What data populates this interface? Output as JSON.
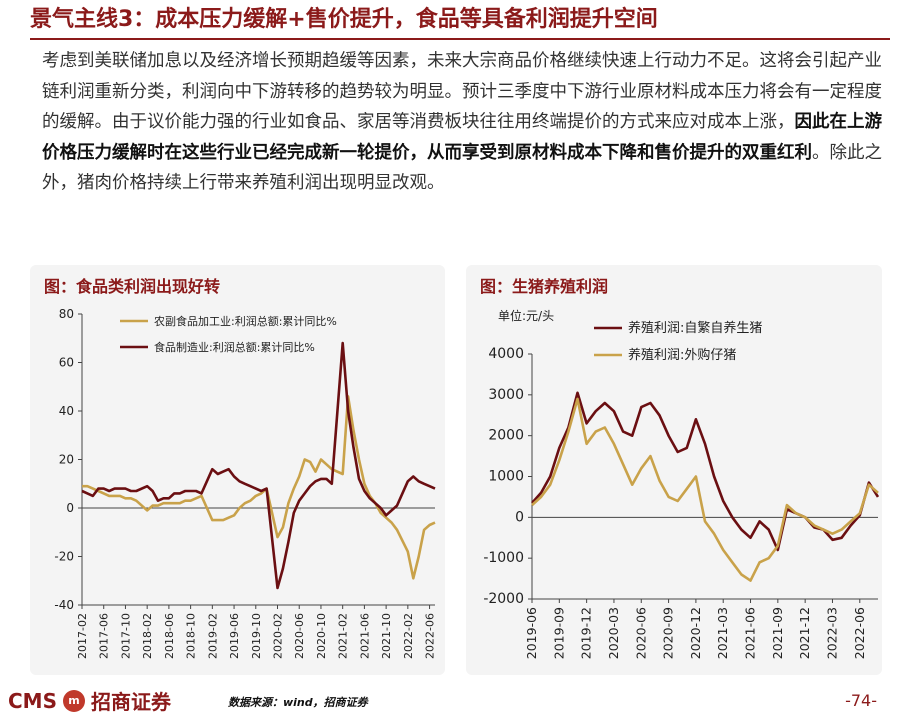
{
  "title": "景气主线3：成本压力缓解+售价提升，食品等具备利润提升空间",
  "body": {
    "p1": "考虑到美联储加息以及经济增长预期趋缓等因素，未来大宗商品价格继续快速上行动力不足。这将会引起产业链利润重新分类，利润向中下游转移的趋势较为明显。预计三季度中下游行业原材料成本压力将会有一定程度的缓解。由于议价能力强的行业如食品、家居等消费板块往往用终端提价的方式来应对成本上涨，",
    "bold": "因此在上游价格压力缓解时在这些行业已经完成新一轮提价，从而享受到原材料成本下降和售价提升的双重红利",
    "p2": "。除此之外，猪肉价格持续上行带来养殖利润出现明显改观。"
  },
  "left_chart_title": "图：食品类利润出现好转",
  "right_chart_title": "图：生猪养殖利润",
  "footer": {
    "logo": "CMS",
    "logo_badge": "m",
    "logo_cn": "招商证券",
    "source": "数据来源：wind，招商证券",
    "page": "-74-"
  },
  "colors": {
    "dark": "#6b0f12",
    "gold": "#c9a24a",
    "accent": "#8b1a1a"
  },
  "chart_data": [
    {
      "type": "line",
      "title": "图：食品类利润出现好转",
      "x_ticks": [
        "2017-02",
        "2017-06",
        "2017-10",
        "2018-02",
        "2018-06",
        "2018-10",
        "2019-02",
        "2019-06",
        "2019-10",
        "2020-02",
        "2020-06",
        "2020-10",
        "2021-02",
        "2021-06",
        "2021-10",
        "2022-02",
        "2022-06"
      ],
      "x_start": "2017-02",
      "x_end": "2022-07",
      "ylim": [
        -40,
        80
      ],
      "yticks": [
        -40,
        -20,
        0,
        20,
        40,
        60,
        80
      ],
      "series": [
        {
          "name": "农副食品加工业:利润总额:累计同比%",
          "color": "gold",
          "points": [
            [
              "2017-02",
              9
            ],
            [
              "2017-03",
              9
            ],
            [
              "2017-04",
              8
            ],
            [
              "2017-05",
              7
            ],
            [
              "2017-06",
              6
            ],
            [
              "2017-07",
              5
            ],
            [
              "2017-08",
              5
            ],
            [
              "2017-09",
              5
            ],
            [
              "2017-10",
              4
            ],
            [
              "2017-11",
              4
            ],
            [
              "2017-12",
              3
            ],
            [
              "2018-02",
              -1
            ],
            [
              "2018-03",
              1
            ],
            [
              "2018-04",
              1
            ],
            [
              "2018-05",
              2
            ],
            [
              "2018-06",
              2
            ],
            [
              "2018-07",
              2
            ],
            [
              "2018-08",
              2
            ],
            [
              "2018-09",
              3
            ],
            [
              "2018-10",
              3
            ],
            [
              "2018-11",
              4
            ],
            [
              "2018-12",
              5
            ],
            [
              "2019-02",
              -5
            ],
            [
              "2019-03",
              -5
            ],
            [
              "2019-04",
              -5
            ],
            [
              "2019-05",
              -4
            ],
            [
              "2019-06",
              -3
            ],
            [
              "2019-07",
              0
            ],
            [
              "2019-08",
              2
            ],
            [
              "2019-09",
              3
            ],
            [
              "2019-10",
              5
            ],
            [
              "2019-11",
              6
            ],
            [
              "2019-12",
              8
            ],
            [
              "2020-02",
              -12
            ],
            [
              "2020-03",
              -8
            ],
            [
              "2020-04",
              2
            ],
            [
              "2020-05",
              8
            ],
            [
              "2020-06",
              13
            ],
            [
              "2020-07",
              20
            ],
            [
              "2020-08",
              19
            ],
            [
              "2020-09",
              15
            ],
            [
              "2020-10",
              20
            ],
            [
              "2020-11",
              18
            ],
            [
              "2020-12",
              16
            ],
            [
              "2021-02",
              14
            ],
            [
              "2021-03",
              46
            ],
            [
              "2021-04",
              32
            ],
            [
              "2021-05",
              20
            ],
            [
              "2021-06",
              10
            ],
            [
              "2021-07",
              5
            ],
            [
              "2021-08",
              2
            ],
            [
              "2021-09",
              -2
            ],
            [
              "2021-10",
              -4
            ],
            [
              "2021-11",
              -6
            ],
            [
              "2021-12",
              -9
            ],
            [
              "2022-02",
              -18
            ],
            [
              "2022-03",
              -29
            ],
            [
              "2022-04",
              -20
            ],
            [
              "2022-05",
              -9
            ],
            [
              "2022-06",
              -7
            ],
            [
              "2022-07",
              -6
            ]
          ]
        },
        {
          "name": "食品制造业:利润总额:累计同比%",
          "color": "dark",
          "points": [
            [
              "2017-02",
              7
            ],
            [
              "2017-03",
              6
            ],
            [
              "2017-04",
              5
            ],
            [
              "2017-05",
              8
            ],
            [
              "2017-06",
              8
            ],
            [
              "2017-07",
              7
            ],
            [
              "2017-08",
              8
            ],
            [
              "2017-09",
              8
            ],
            [
              "2017-10",
              8
            ],
            [
              "2017-11",
              7
            ],
            [
              "2017-12",
              7
            ],
            [
              "2018-02",
              9
            ],
            [
              "2018-03",
              7
            ],
            [
              "2018-04",
              3
            ],
            [
              "2018-05",
              4
            ],
            [
              "2018-06",
              4
            ],
            [
              "2018-07",
              6
            ],
            [
              "2018-08",
              6
            ],
            [
              "2018-09",
              7
            ],
            [
              "2018-10",
              7
            ],
            [
              "2018-11",
              7
            ],
            [
              "2018-12",
              6
            ],
            [
              "2019-02",
              16
            ],
            [
              "2019-03",
              14
            ],
            [
              "2019-04",
              15
            ],
            [
              "2019-05",
              16
            ],
            [
              "2019-06",
              13
            ],
            [
              "2019-07",
              11
            ],
            [
              "2019-08",
              10
            ],
            [
              "2019-09",
              9
            ],
            [
              "2019-10",
              8
            ],
            [
              "2019-11",
              7
            ],
            [
              "2019-12",
              8
            ],
            [
              "2020-02",
              -33
            ],
            [
              "2020-03",
              -25
            ],
            [
              "2020-04",
              -14
            ],
            [
              "2020-05",
              -2
            ],
            [
              "2020-06",
              3
            ],
            [
              "2020-07",
              6
            ],
            [
              "2020-08",
              9
            ],
            [
              "2020-09",
              11
            ],
            [
              "2020-10",
              12
            ],
            [
              "2020-11",
              12
            ],
            [
              "2020-12",
              10
            ],
            [
              "2021-02",
              68
            ],
            [
              "2021-03",
              40
            ],
            [
              "2021-04",
              25
            ],
            [
              "2021-05",
              12
            ],
            [
              "2021-06",
              7
            ],
            [
              "2021-07",
              4
            ],
            [
              "2021-08",
              2
            ],
            [
              "2021-09",
              0
            ],
            [
              "2021-10",
              -3
            ],
            [
              "2021-11",
              -1
            ],
            [
              "2021-12",
              1
            ],
            [
              "2022-02",
              11
            ],
            [
              "2022-03",
              13
            ],
            [
              "2022-04",
              11
            ],
            [
              "2022-05",
              10
            ],
            [
              "2022-06",
              9
            ],
            [
              "2022-07",
              8
            ]
          ]
        }
      ]
    },
    {
      "type": "line",
      "title": "图：生猪养殖利润",
      "unit_label": "单位:元/头",
      "x_ticks": [
        "2019-06",
        "2019-09",
        "2019-12",
        "2020-03",
        "2020-06",
        "2020-09",
        "2020-12",
        "2021-03",
        "2021-06",
        "2021-09",
        "2021-12",
        "2022-03",
        "2022-06"
      ],
      "x_start": "2019-06",
      "x_end": "2022-08",
      "ylim": [
        -2000,
        4000
      ],
      "yticks": [
        -2000,
        -1000,
        0,
        1000,
        2000,
        3000,
        4000
      ],
      "series": [
        {
          "name": "养殖利润:自繁自养生猪",
          "color": "dark",
          "points": [
            [
              "2019-06",
              350
            ],
            [
              "2019-07",
              600
            ],
            [
              "2019-08",
              1000
            ],
            [
              "2019-09",
              1700
            ],
            [
              "2019-10",
              2200
            ],
            [
              "2019-11",
              3050
            ],
            [
              "2019-12",
              2300
            ],
            [
              "2020-01",
              2600
            ],
            [
              "2020-02",
              2800
            ],
            [
              "2020-03",
              2600
            ],
            [
              "2020-04",
              2100
            ],
            [
              "2020-05",
              2000
            ],
            [
              "2020-06",
              2700
            ],
            [
              "2020-07",
              2800
            ],
            [
              "2020-08",
              2500
            ],
            [
              "2020-09",
              2000
            ],
            [
              "2020-10",
              1600
            ],
            [
              "2020-11",
              1700
            ],
            [
              "2020-12",
              2400
            ],
            [
              "2021-01",
              1800
            ],
            [
              "2021-02",
              1000
            ],
            [
              "2021-03",
              400
            ],
            [
              "2021-04",
              0
            ],
            [
              "2021-05",
              -300
            ],
            [
              "2021-06",
              -500
            ],
            [
              "2021-07",
              -100
            ],
            [
              "2021-08",
              -300
            ],
            [
              "2021-09",
              -800
            ],
            [
              "2021-10",
              200
            ],
            [
              "2021-11",
              100
            ],
            [
              "2021-12",
              0
            ],
            [
              "2022-01",
              -250
            ],
            [
              "2022-02",
              -300
            ],
            [
              "2022-03",
              -550
            ],
            [
              "2022-04",
              -500
            ],
            [
              "2022-05",
              -200
            ],
            [
              "2022-06",
              50
            ],
            [
              "2022-07",
              850
            ],
            [
              "2022-08",
              500
            ]
          ]
        },
        {
          "name": "养殖利润:外购仔猪",
          "color": "gold",
          "points": [
            [
              "2019-06",
              300
            ],
            [
              "2019-07",
              500
            ],
            [
              "2019-08",
              800
            ],
            [
              "2019-09",
              1400
            ],
            [
              "2019-10",
              2100
            ],
            [
              "2019-11",
              2900
            ],
            [
              "2019-12",
              1800
            ],
            [
              "2020-01",
              2100
            ],
            [
              "2020-02",
              2200
            ],
            [
              "2020-03",
              1800
            ],
            [
              "2020-04",
              1300
            ],
            [
              "2020-05",
              800
            ],
            [
              "2020-06",
              1200
            ],
            [
              "2020-07",
              1500
            ],
            [
              "2020-08",
              900
            ],
            [
              "2020-09",
              500
            ],
            [
              "2020-10",
              400
            ],
            [
              "2020-11",
              700
            ],
            [
              "2020-12",
              1000
            ],
            [
              "2021-01",
              -100
            ],
            [
              "2021-02",
              -400
            ],
            [
              "2021-03",
              -800
            ],
            [
              "2021-04",
              -1100
            ],
            [
              "2021-05",
              -1400
            ],
            [
              "2021-06",
              -1550
            ],
            [
              "2021-07",
              -1100
            ],
            [
              "2021-08",
              -1000
            ],
            [
              "2021-09",
              -700
            ],
            [
              "2021-10",
              300
            ],
            [
              "2021-11",
              100
            ],
            [
              "2021-12",
              0
            ],
            [
              "2022-01",
              -200
            ],
            [
              "2022-02",
              -300
            ],
            [
              "2022-03",
              -400
            ],
            [
              "2022-04",
              -300
            ],
            [
              "2022-05",
              -100
            ],
            [
              "2022-06",
              100
            ],
            [
              "2022-07",
              800
            ],
            [
              "2022-08",
              600
            ]
          ]
        }
      ]
    }
  ]
}
